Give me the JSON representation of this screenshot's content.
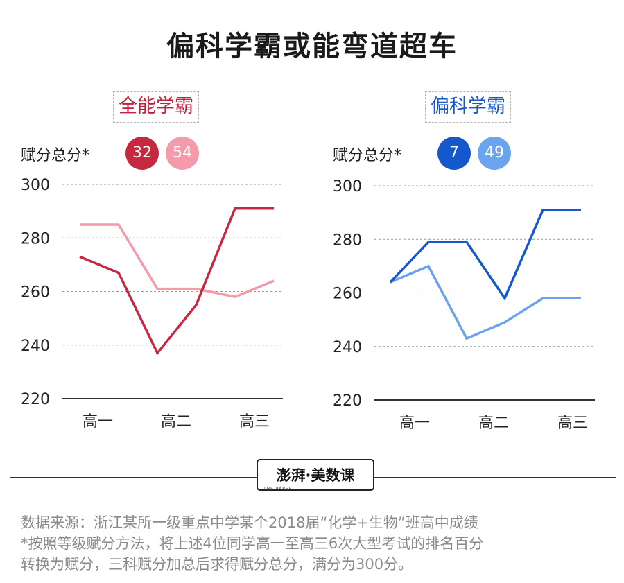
{
  "title": "偏科学霸或能弯道超车",
  "legend_caption": "赋分总分*",
  "panels": [
    {
      "label": "全能学霸",
      "color": "#c0203a",
      "badges": [
        {
          "text": "32",
          "color": "#c5283f"
        },
        {
          "text": "54",
          "color": "#f49aaa"
        }
      ]
    },
    {
      "label": "偏科学霸",
      "color": "#1757c9",
      "badges": [
        {
          "text": "7",
          "color": "#1458cc"
        },
        {
          "text": "49",
          "color": "#6aa3ee"
        }
      ]
    }
  ],
  "chart_data": [
    {
      "type": "line",
      "title": "全能学霸",
      "ylabel": "赋分总分*",
      "x": [
        0,
        1,
        2,
        3,
        4,
        5
      ],
      "xticks": [
        "高一",
        "高二",
        "高三"
      ],
      "yticks": [
        220,
        240,
        260,
        280,
        300
      ],
      "ylim": [
        220,
        300
      ],
      "grid": "horizontal dashed",
      "series": [
        {
          "name": "32",
          "color": "#c5283f",
          "values": [
            273,
            267,
            237,
            255,
            291,
            291
          ]
        },
        {
          "name": "54",
          "color": "#f49aaa",
          "values": [
            285,
            285,
            261,
            261,
            258,
            264
          ]
        }
      ]
    },
    {
      "type": "line",
      "title": "偏科学霸",
      "ylabel": "赋分总分*",
      "x": [
        0,
        1,
        2,
        3,
        4,
        5
      ],
      "xticks": [
        "高一",
        "高二",
        "高三"
      ],
      "yticks": [
        220,
        240,
        260,
        280,
        300
      ],
      "ylim": [
        220,
        300
      ],
      "grid": "horizontal dashed",
      "series": [
        {
          "name": "7",
          "color": "#1458cc",
          "values": [
            264,
            279,
            279,
            258,
            291,
            291
          ]
        },
        {
          "name": "49",
          "color": "#6aa3ee",
          "values": [
            264,
            270,
            243,
            249,
            258,
            258
          ]
        }
      ]
    }
  ],
  "logo": {
    "brand": "澎湃·美数课",
    "small": "THE PAPER"
  },
  "source_lines": [
    "数据来源：浙江某所一级重点中学某个2018届“化学+生物”班高中成绩",
    "*按照等级赋分方法，将上述4位同学高一至高三6次大型考试的排名百分",
    "  转换为赋分，三科赋分加总后求得赋分总分，满分为300分。"
  ]
}
